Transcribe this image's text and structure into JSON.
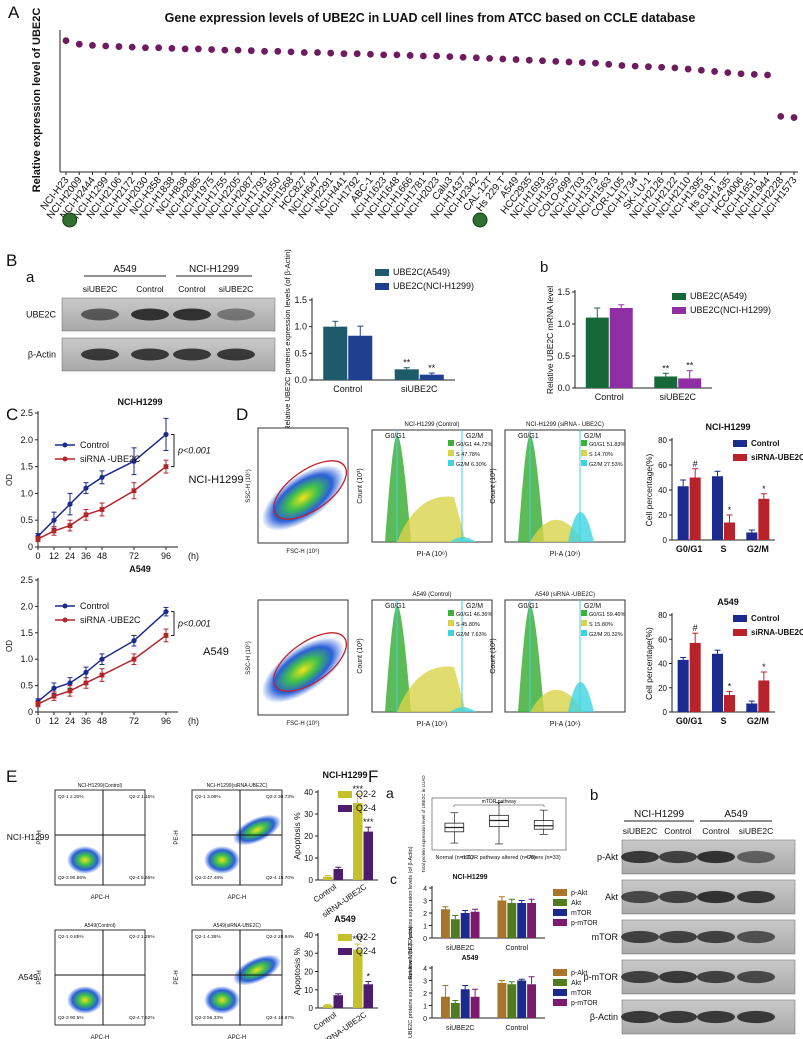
{
  "panel_letters": [
    "A",
    "B",
    "a",
    "b",
    "C",
    "D",
    "E",
    "F",
    "a",
    "b",
    "c"
  ],
  "blot_b": {
    "cell_lines": [
      "A549",
      "NCI-H1299"
    ],
    "lanes": [
      "siUBE2C",
      "Control",
      "Control",
      "siUBE2C"
    ],
    "proteins": [
      "UBE2C",
      "β-Actin"
    ]
  },
  "blot_f": {
    "cell_lines": [
      "NCI-H1299",
      "A549"
    ],
    "lanes": [
      "siUBE2C",
      "Control",
      "Control",
      "siUBE2C"
    ],
    "proteins": [
      "p-Akt",
      "Akt",
      "mTOR",
      "p-mTOR",
      "β-Actin"
    ]
  },
  "flow_d": {
    "rows": [
      "NCI-H1299",
      "A549"
    ],
    "scatter_y": "SSC-H (10⁶)",
    "scatter_x": "FSC-H (10⁶)",
    "hist_y": "Count (10³)",
    "hist_x": "PI-A (10⁶)",
    "gates": [
      "G0/G1",
      "G2/M"
    ],
    "hist": [
      {
        "title": "NCI-H1299 (Control)",
        "legend": [
          "G0/G1 44.72%",
          "S 47.78%",
          "G2/M 6.30%"
        ]
      },
      {
        "title": "NCI-H1299 (siRNA - UBE2C)",
        "legend": [
          "G0/G1 51.83%",
          "S 14.70%",
          "G2/M 27.53%"
        ]
      },
      {
        "title": "A549 (Control)",
        "legend": [
          "G0/G1 46.36%",
          "S 45.80%",
          "G2/M 7.63%"
        ]
      },
      {
        "title": "A549 (siRNA -UBE2C)",
        "legend": [
          "G0/G1 59.46%",
          "S 15.80%",
          "G2/M 20.32%"
        ]
      }
    ]
  },
  "flow_e": {
    "rows": [
      "NCI-H1299",
      "A549"
    ],
    "y_label": "PE-H",
    "x_label": "APC-H",
    "plots": [
      {
        "title": "NCI-H1299(Control)",
        "quads": [
          "Q2-1 2.20%",
          "Q2-2 1.15%",
          "Q2-3 90.86%",
          "Q2-4 5.65%"
        ]
      },
      {
        "title": "NCI-H1299(siRNA-UBE2C)",
        "quads": [
          "Q2-1 3.08%",
          "Q2-2 30.73%",
          "Q2-3 47.48%",
          "Q2-4 18.70%"
        ]
      },
      {
        "title": "A549(Control)",
        "quads": [
          "Q2-1 0.85%",
          "Q2-2 1.26%",
          "Q2-3 90.5%",
          "Q2-4 7.62%"
        ]
      },
      {
        "title": "A549(siRNA-UBE2C)",
        "quads": [
          "Q2-1 4.38%",
          "Q2-2 28.94%",
          "Q2-3 56.33%",
          "Q2-4 10.87%"
        ]
      }
    ]
  },
  "chart_data": [
    {
      "type": "dot",
      "title": "Gene expression levels of UBE2C in LUAD  cell lines from ATCC based on CCLE database",
      "ylabel": "Relative expression level of UBE2C",
      "color": "#6e1b5f",
      "ylim": [
        2,
        14
      ],
      "categories": [
        "NCI-H23",
        "NCI-H2009",
        "NCI-H2444",
        "NCI-H1299",
        "NCI-H2106",
        "NCI-H2172",
        "NCI-H2030",
        "NCI-H358",
        "NCI-H1838",
        "NCI-H838",
        "NCI-H2085",
        "NCI-H1975",
        "NCI-H1755",
        "NCI-H2205",
        "NCI-H2087",
        "NCI-H1793",
        "NCI-H1650",
        "NCI-H1568",
        "HCC827",
        "NCI-H647",
        "NCI-H2291",
        "NCI-H441",
        "NCI-H1792",
        "ABC-1",
        "NCI-H1623",
        "NCI-H1648",
        "NCI-H1666",
        "NCI-H1781",
        "NCI-H2023",
        "Calu3",
        "NCI-H1437",
        "NCI-H2342",
        "CAL-12T",
        "Hs 229.T",
        "A549",
        "HCC2935",
        "NCI-H1693",
        "NCI-H1355",
        "COLO-699",
        "NCI-H1703",
        "NCI-H1373",
        "NCI-H1563",
        "COR-L105",
        "NCI-H1734",
        "SK-LU-1",
        "NCI-H2126",
        "NCI-H2122",
        "NCI-H2110",
        "NCI-H1395",
        "Hs 618.T",
        "NCI-H1435",
        "HCC4006",
        "NCI-H1651",
        "NCI-H1944",
        "NCI-H2228",
        "NCI-H1573"
      ],
      "values": [
        13.1,
        12.8,
        12.7,
        12.65,
        12.6,
        12.55,
        12.5,
        12.5,
        12.45,
        12.4,
        12.4,
        12.35,
        12.3,
        12.3,
        12.25,
        12.2,
        12.2,
        12.15,
        12.1,
        12.1,
        12.05,
        12.0,
        12.0,
        11.95,
        11.9,
        11.9,
        11.85,
        11.8,
        11.8,
        11.75,
        11.7,
        11.65,
        11.6,
        11.55,
        11.5,
        11.45,
        11.4,
        11.35,
        11.3,
        11.25,
        11.2,
        11.1,
        11.0,
        10.95,
        10.9,
        10.85,
        10.8,
        10.7,
        10.6,
        10.5,
        10.4,
        10.3,
        10.25,
        10.2,
        6.7,
        6.6
      ]
    },
    {
      "type": "bar",
      "ylabel": "Relative UBE2C proteins expression levels (of β-Actin)",
      "categories": [
        "Control",
        "siUBE2C"
      ],
      "ylim": [
        0,
        1.5
      ],
      "yticks": [
        {
          "value": 0,
          "label": "0.0"
        },
        0.5,
        {
          "value": 1,
          "label": "1.0"
        },
        1.5
      ],
      "series": [
        {
          "name": "UBE2C(A549)",
          "color": "#1d5b6b",
          "values": [
            1.0,
            0.2
          ],
          "errors": [
            0.1,
            0.03
          ],
          "significance": [
            null,
            "**"
          ]
        },
        {
          "name": "UBE2C(NCI-H1299)",
          "color": "#1f3f8f",
          "values": [
            0.83,
            0.1
          ],
          "errors": [
            0.18,
            0.03
          ],
          "significance": [
            null,
            "**"
          ]
        }
      ]
    },
    {
      "type": "bar",
      "ylabel": "Relative UBE2C mRNA level",
      "categories": [
        "Control",
        "siUBE2C"
      ],
      "ylim": [
        0,
        1.5
      ],
      "yticks": [
        {
          "value": 0,
          "label": "0.0"
        },
        0.5,
        {
          "value": 1,
          "label": "1.0"
        },
        1.5
      ],
      "series": [
        {
          "name": "UBE2C(A549)",
          "color": "#17693a",
          "values": [
            1.1,
            0.18
          ],
          "errors": [
            0.15,
            0.05
          ],
          "significance": [
            null,
            "**"
          ]
        },
        {
          "name": "UBE2C(NCI-H1299)",
          "color": "#8e2fa3",
          "values": [
            1.25,
            0.15
          ],
          "errors": [
            0.05,
            0.12
          ],
          "significance": [
            null,
            "**"
          ]
        }
      ]
    },
    {
      "type": "line",
      "title": "NCI-H1299",
      "ylabel": "OD",
      "xlabel": "(h)",
      "annotation": "p<0.001",
      "x": [
        0,
        12,
        24,
        36,
        48,
        72,
        96
      ],
      "xlim": [
        0,
        105
      ],
      "xticks": [
        0,
        12,
        24,
        36,
        48,
        72,
        96
      ],
      "ylim": [
        0,
        2.5
      ],
      "yticks": [
        0,
        0.5,
        {
          "value": 1,
          "label": "1.0"
        },
        1.5,
        {
          "value": 2,
          "label": "2.0"
        },
        2.5
      ],
      "series": [
        {
          "name": "Control",
          "color": "#1c2a8c",
          "values": [
            0.2,
            0.5,
            0.8,
            1.1,
            1.3,
            1.6,
            2.1
          ],
          "errors": [
            0.05,
            0.15,
            0.2,
            0.1,
            0.12,
            0.25,
            0.3
          ]
        },
        {
          "name": "siRNA -UBE2C",
          "color": "#b0262b",
          "values": [
            0.15,
            0.3,
            0.4,
            0.6,
            0.7,
            1.05,
            1.5
          ],
          "errors": [
            0.05,
            0.08,
            0.1,
            0.1,
            0.12,
            0.15,
            0.12
          ]
        }
      ]
    },
    {
      "type": "line",
      "title": "A549",
      "ylabel": "OD",
      "xlabel": "(h)",
      "annotation": "p<0.001",
      "x": [
        0,
        12,
        24,
        36,
        48,
        72,
        96
      ],
      "xlim": [
        0,
        105
      ],
      "xticks": [
        0,
        12,
        24,
        36,
        48,
        72,
        96
      ],
      "ylim": [
        0,
        2.5
      ],
      "yticks": [
        0,
        0.5,
        {
          "value": 1,
          "label": "1.0"
        },
        1.5,
        {
          "value": 2,
          "label": "2.0"
        },
        2.5
      ],
      "series": [
        {
          "name": "Control",
          "color": "#1c2a8c",
          "values": [
            0.2,
            0.45,
            0.55,
            0.75,
            1.0,
            1.35,
            1.9
          ],
          "errors": [
            0.05,
            0.1,
            0.1,
            0.1,
            0.1,
            0.1,
            0.08
          ]
        },
        {
          "name": "siRNA -UBE2C",
          "color": "#b0262b",
          "values": [
            0.15,
            0.3,
            0.4,
            0.55,
            0.7,
            1.0,
            1.45
          ],
          "errors": [
            0.05,
            0.08,
            0.1,
            0.1,
            0.12,
            0.1,
            0.12
          ]
        }
      ]
    },
    {
      "type": "bar",
      "title": "NCI-H1299",
      "ylabel": "Cell percentage(%)",
      "categories": [
        "G0/G1",
        "S",
        "G2/M"
      ],
      "ylim": [
        0,
        80
      ],
      "yticks": [
        0,
        20,
        40,
        60,
        80
      ],
      "series": [
        {
          "name": "Control",
          "color": "#1b2b8f",
          "values": [
            43,
            51,
            6
          ],
          "errors": [
            5,
            4,
            2
          ]
        },
        {
          "name": "siRNA-UBE2C",
          "color": "#b8232b",
          "values": [
            50,
            14,
            33
          ],
          "errors": [
            7,
            6,
            4
          ],
          "significance": [
            "#",
            "*",
            "*"
          ]
        }
      ]
    },
    {
      "type": "bar",
      "title": "A549",
      "ylabel": "Cell percentage(%)",
      "categories": [
        "G0/G1",
        "S",
        "G2/M"
      ],
      "ylim": [
        0,
        80
      ],
      "yticks": [
        0,
        20,
        40,
        60,
        80
      ],
      "series": [
        {
          "name": "Control",
          "color": "#1b2b8f",
          "values": [
            43,
            48,
            7
          ],
          "errors": [
            2,
            3,
            2
          ],
          "significance": [
            null,
            null,
            null
          ]
        },
        {
          "name": "siRNA-UBE2C",
          "color": "#b8232b",
          "values": [
            57,
            14,
            26
          ],
          "errors": [
            8,
            3,
            7
          ],
          "significance": [
            "#",
            "*",
            "*"
          ]
        }
      ]
    },
    {
      "type": "bar",
      "title": "NCI-H1299",
      "ylabel": "Apoptosis %",
      "categories": [
        "Control",
        "siRNA-UBE2C"
      ],
      "ylim": [
        0,
        40
      ],
      "yticks": [
        0,
        10,
        20,
        30,
        40
      ],
      "series": [
        {
          "name": "Q2-2",
          "color": "#c3c22a",
          "values": [
            1.5,
            35
          ],
          "errors": [
            0.5,
            4
          ],
          "significance": [
            null,
            "***"
          ]
        },
        {
          "name": "Q2-4",
          "color": "#4c1d6e",
          "values": [
            5,
            22
          ],
          "errors": [
            0.8,
            2
          ],
          "significance": [
            null,
            "***"
          ]
        }
      ]
    },
    {
      "type": "bar",
      "title": "A549",
      "ylabel": "Apoptosis %",
      "categories": [
        "Control",
        "siRNA-UBE2C"
      ],
      "ylim": [
        0,
        40
      ],
      "yticks": [
        0,
        10,
        20,
        30,
        40
      ],
      "series": [
        {
          "name": "Q2-2",
          "color": "#c3c22a",
          "values": [
            1.5,
            32
          ],
          "errors": [
            0.5,
            3
          ],
          "significance": [
            null,
            "***"
          ]
        },
        {
          "name": "Q2-4",
          "color": "#4c1d6e",
          "values": [
            7,
            13
          ],
          "errors": [
            0.8,
            1.5
          ],
          "significance": [
            null,
            "*"
          ]
        }
      ]
    },
    {
      "type": "box",
      "title": "mTOR pathway",
      "ylabel": "Total protein expression level of UBE2C in LUAD",
      "categories": [
        "Normal (n=111)",
        "mTOR pathway altered (n=76)",
        "Others (n=33)"
      ],
      "ylim": [
        -3,
        3
      ],
      "boxes": [
        {
          "min": -2.2,
          "q1": -0.9,
          "median": -0.4,
          "q3": 0.1,
          "max": 1.3
        },
        {
          "min": -2.3,
          "q1": -0.3,
          "median": 0.4,
          "q3": 1.0,
          "max": 2.5
        },
        {
          "min": -1.2,
          "q1": -0.6,
          "median": -0.2,
          "q3": 0.4,
          "max": 1.6
        }
      ]
    },
    {
      "type": "bar",
      "title": "NCI-H1299",
      "ylabel": "Relative UBE2C proteins expression levels (of β-Actin)",
      "categories": [
        "siUBE2C",
        "Control"
      ],
      "ylim": [
        0,
        4
      ],
      "yticks": [
        0,
        1,
        2,
        3,
        4
      ],
      "series": [
        {
          "name": "p-Akt",
          "color": "#a8742a",
          "values": [
            2.3,
            3.0
          ],
          "errors": [
            0.2,
            0.3
          ]
        },
        {
          "name": "Akt",
          "color": "#4f7c1f",
          "values": [
            1.5,
            2.8
          ],
          "errors": [
            0.3,
            0.3
          ]
        },
        {
          "name": "mTOR",
          "color": "#1b2a8c",
          "values": [
            2.0,
            2.8
          ],
          "errors": [
            0.2,
            0.2
          ]
        },
        {
          "name": "p-mTOR",
          "color": "#7c1a6e",
          "values": [
            2.1,
            2.8
          ],
          "errors": [
            0.2,
            0.3
          ]
        }
      ]
    },
    {
      "type": "bar",
      "title": "A549",
      "ylabel": "Relative UBE2C proteins expression levels (of β-Actin)",
      "categories": [
        "siUBE2C",
        "Control"
      ],
      "ylim": [
        0,
        4
      ],
      "yticks": [
        0,
        1,
        2,
        3,
        4
      ],
      "series": [
        {
          "name": "p-Akt",
          "color": "#a8742a",
          "values": [
            1.7,
            2.8
          ],
          "errors": [
            0.9,
            0.2
          ]
        },
        {
          "name": "Akt",
          "color": "#4f7c1f",
          "values": [
            1.2,
            2.7
          ],
          "errors": [
            0.2,
            0.2
          ]
        },
        {
          "name": "mTOR",
          "color": "#1b2a8c",
          "values": [
            2.3,
            3.0
          ],
          "errors": [
            0.3,
            0.1
          ]
        },
        {
          "name": "p-mTOR",
          "color": "#7c1a6e",
          "values": [
            1.7,
            2.7
          ],
          "errors": [
            0.6,
            0.6
          ]
        }
      ]
    }
  ]
}
